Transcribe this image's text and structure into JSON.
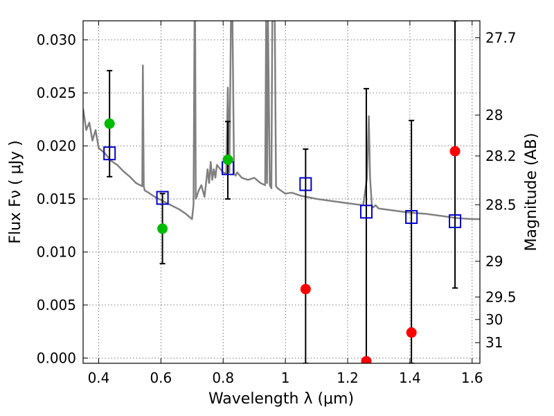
{
  "chart_data": {
    "type": "scatter",
    "xlabel": "Wavelength  λ (μm)",
    "ylabel": "Flux  Fν  ( μJy )",
    "ylabel_right": "Magnitude (AB)",
    "xlim": [
      0.35,
      1.625
    ],
    "ylim": [
      -0.0005,
      0.0318
    ],
    "grid": true,
    "x_ticks": [
      0.4,
      0.6,
      0.8,
      1.0,
      1.2,
      1.4,
      1.6
    ],
    "x_tick_labels": [
      "0.4",
      "0.6",
      "0.8",
      "1",
      "1.2",
      "1.4",
      "1.6"
    ],
    "y_ticks": [
      0.0,
      0.005,
      0.01,
      0.015,
      0.02,
      0.025,
      0.03
    ],
    "y_tick_labels": [
      "0.000",
      "0.005",
      "0.010",
      "0.015",
      "0.020",
      "0.025",
      "0.030"
    ],
    "mag_ticks": [
      27.7,
      28,
      28.2,
      28.5,
      29,
      29.5,
      30,
      31
    ],
    "mag_tick_labels": [
      "27.7",
      "28",
      "28.2",
      "28.5",
      "29",
      "29.5",
      "30",
      "31"
    ],
    "colors": {
      "spectrum": "#808080",
      "detection": "#00bb00",
      "non_detection": "#ff0000",
      "model_box": "#0000cc",
      "errorbar": "#000000"
    },
    "series": [
      {
        "role": "template_spectrum",
        "x": [
          0.35,
          0.36,
          0.37,
          0.38,
          0.39,
          0.4,
          0.42,
          0.44,
          0.46,
          0.48,
          0.5,
          0.52,
          0.54,
          0.542,
          0.545,
          0.548,
          0.56,
          0.58,
          0.6,
          0.62,
          0.64,
          0.66,
          0.68,
          0.7,
          0.705,
          0.708,
          0.71,
          0.712,
          0.715,
          0.72,
          0.73,
          0.74,
          0.75,
          0.755,
          0.76,
          0.765,
          0.77,
          0.775,
          0.78,
          0.8,
          0.81,
          0.815,
          0.82,
          0.825,
          0.83,
          0.835,
          0.84,
          0.845,
          0.86,
          0.88,
          0.9,
          0.92,
          0.935,
          0.938,
          0.941,
          0.944,
          0.95,
          0.955,
          0.958,
          0.96,
          0.963,
          0.966,
          0.97,
          0.975,
          1.0,
          1.02,
          1.05,
          1.1,
          1.15,
          1.2,
          1.25,
          1.262,
          1.268,
          1.272,
          1.278,
          1.282,
          1.29,
          1.3,
          1.35,
          1.4,
          1.45,
          1.5,
          1.55,
          1.6,
          1.625
        ],
        "y": [
          0.0235,
          0.0215,
          0.0222,
          0.0205,
          0.0215,
          0.0198,
          0.0193,
          0.0186,
          0.0182,
          0.0176,
          0.0171,
          0.0165,
          0.0162,
          0.0276,
          0.0162,
          0.0158,
          0.0156,
          0.0152,
          0.0149,
          0.0146,
          0.0143,
          0.014,
          0.0136,
          0.0131,
          0.0145,
          0.0318,
          0.0318,
          0.015,
          0.0152,
          0.0157,
          0.0163,
          0.0152,
          0.0178,
          0.0165,
          0.0185,
          0.0168,
          0.0178,
          0.017,
          0.0182,
          0.0175,
          0.0174,
          0.0255,
          0.0175,
          0.0318,
          0.0318,
          0.0174,
          0.0172,
          0.0175,
          0.017,
          0.0168,
          0.017,
          0.0165,
          0.0163,
          0.0318,
          0.0165,
          0.0318,
          0.0163,
          0.016,
          0.0318,
          0.0318,
          0.0318,
          0.0318,
          0.0162,
          0.016,
          0.0155,
          0.0156,
          0.0153,
          0.015,
          0.0148,
          0.0146,
          0.0144,
          0.017,
          0.0228,
          0.017,
          0.0143,
          0.0142,
          0.0144,
          0.0141,
          0.0139,
          0.0137,
          0.0136,
          0.0134,
          0.0132,
          0.0131,
          0.0131
        ]
      },
      {
        "role": "model_photometry",
        "marker": "open-square",
        "x": [
          0.435,
          0.605,
          0.815,
          1.065,
          1.26,
          1.405,
          1.545
        ],
        "y": [
          0.0193,
          0.0151,
          0.0179,
          0.0164,
          0.0138,
          0.0133,
          0.0129
        ]
      },
      {
        "role": "detections",
        "marker": "filled-circle",
        "x": [
          0.435,
          0.605,
          0.815
        ],
        "y": [
          0.0221,
          0.0122,
          0.0187
        ]
      },
      {
        "role": "non_detections",
        "marker": "filled-circle",
        "x": [
          1.065,
          1.26,
          1.405,
          1.545
        ],
        "y": [
          0.0065,
          -0.0003,
          0.0024,
          0.0195
        ]
      },
      {
        "role": "error_bars",
        "x": [
          0.435,
          0.605,
          0.815,
          1.065,
          1.26,
          1.405,
          1.545
        ],
        "low": [
          0.0171,
          0.0089,
          0.015,
          -0.0005,
          -0.0005,
          -0.0005,
          0.0066
        ],
        "high": [
          0.0271,
          0.0155,
          0.0223,
          0.0197,
          0.0254,
          0.0224,
          0.0318
        ]
      }
    ]
  }
}
